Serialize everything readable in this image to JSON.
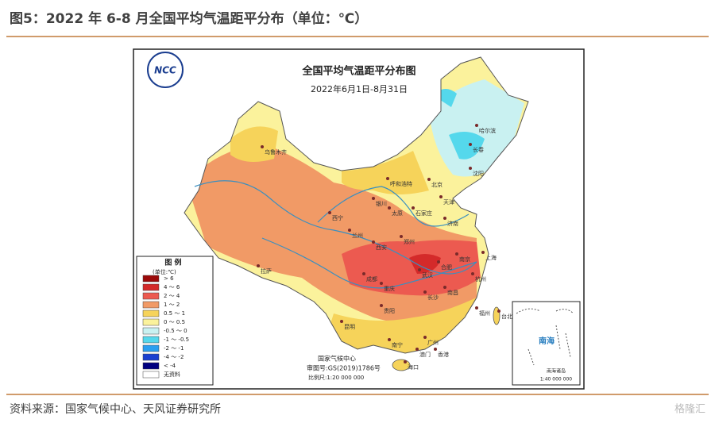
{
  "header": {
    "title": "图5：2022 年 6-8 月全国平均气温距平分布（单位：℃）"
  },
  "map": {
    "logo": "NCC",
    "title": "全国平均气温距平分布图",
    "subtitle": "2022年6月1日-8月31日",
    "legend": {
      "title": "图 例",
      "unit": "(单位:℃)",
      "items": [
        {
          "label": "> 6",
          "color": "#9b0a0a"
        },
        {
          "label": "4 ～ 6",
          "color": "#d42a2a"
        },
        {
          "label": "2 ～ 4",
          "color": "#ec5a50"
        },
        {
          "label": "1 ～ 2",
          "color": "#f19a66"
        },
        {
          "label": "0.5 ～ 1",
          "color": "#f6d35a"
        },
        {
          "label": "0 ～ 0.5",
          "color": "#fbf29c"
        },
        {
          "label": "-0.5 ～ 0",
          "color": "#c9f1f1"
        },
        {
          "label": "-1 ～ -0.5",
          "color": "#55d8ec"
        },
        {
          "label": "-2 ～ -1",
          "color": "#2a9ff0"
        },
        {
          "label": "-4 ～ -2",
          "color": "#1a40d0"
        },
        {
          "label": "< -4",
          "color": "#000080"
        },
        {
          "label": "无资料",
          "color": "#ffffff"
        }
      ]
    },
    "credit": [
      "国家气候中心",
      "审图号:GS(2019)1786号",
      "比例尺:1:20 000 000"
    ],
    "inset": {
      "title": "南海诸岛",
      "sea": "南海",
      "scale": "1:40 000 000"
    },
    "cities": [
      "乌鲁木齐",
      "哈尔滨",
      "长春",
      "沈阳",
      "呼和浩特",
      "北京",
      "天津",
      "石家庄",
      "太原",
      "济南",
      "西宁",
      "兰州",
      "银川",
      "郑州",
      "西安",
      "南京",
      "合肥",
      "上海",
      "武汉",
      "杭州",
      "拉萨",
      "成都",
      "重庆",
      "长沙",
      "南昌",
      "福州",
      "贵阳",
      "昆明",
      "台北",
      "广州",
      "南宁",
      "香港",
      "澳门",
      "海口"
    ]
  },
  "source": "资料来源：国家气候中心、天风证券研究所",
  "watermark": "格隆汇"
}
